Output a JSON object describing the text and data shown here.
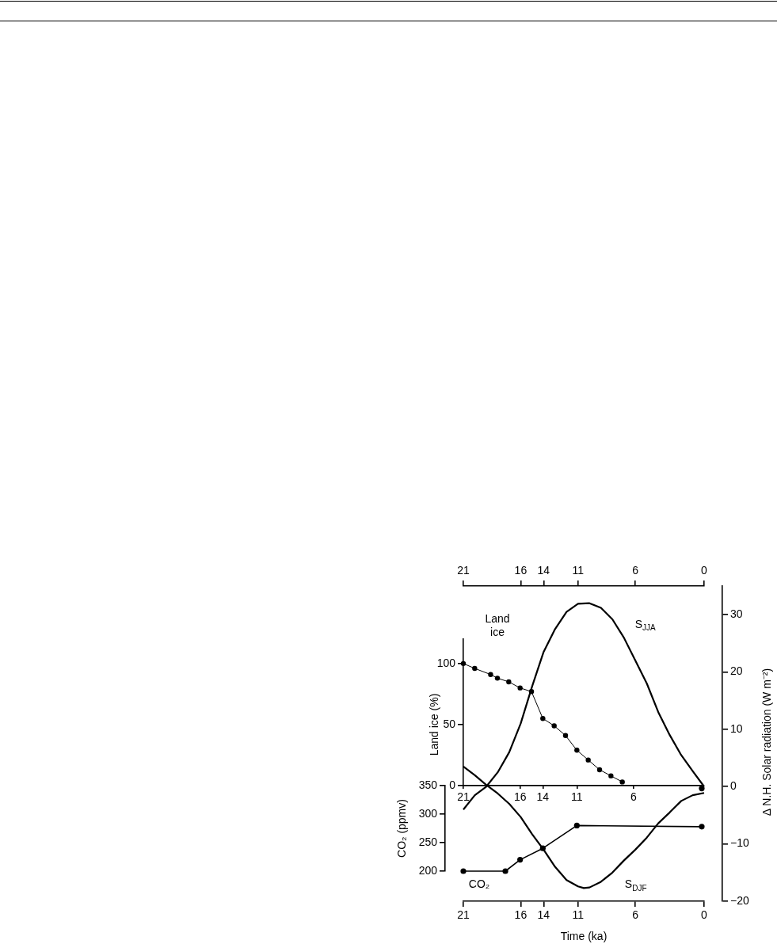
{
  "chart_data": [
    {
      "type": "line",
      "xlabel": "Time (ka)",
      "ylabel": "Δ N.H. Solar radiation (W m⁻²)",
      "xlim": [
        21,
        0
      ],
      "xticks": [
        21,
        16,
        14,
        11,
        6,
        0
      ],
      "x2lim": [
        21,
        0
      ],
      "x2ticks": [
        21,
        16,
        14,
        11,
        6,
        0
      ],
      "ylim": [
        -20,
        35
      ],
      "yticks": [
        -20,
        -10,
        0,
        10,
        20,
        30
      ],
      "series": [
        {
          "name": "S$_{JJA}$",
          "color": "#000000",
          "x": [
            21,
            20,
            19,
            18,
            17,
            16,
            15,
            14,
            13,
            12,
            11,
            10,
            9,
            8,
            7,
            6,
            5,
            4,
            3,
            2,
            1,
            0
          ],
          "values": [
            -4,
            -1.5,
            0,
            2.5,
            6,
            11,
            17.5,
            23.5,
            27.5,
            30.5,
            31.9,
            32,
            31.2,
            29.2,
            26,
            22,
            18,
            13,
            9,
            5.5,
            2.7,
            0
          ]
        },
        {
          "name": "S$_{DJF}$",
          "color": "#000000",
          "x": [
            21,
            20,
            19,
            18,
            17,
            16,
            15,
            14,
            13,
            12,
            11,
            10.5,
            10,
            9,
            8,
            7,
            6,
            5,
            4,
            3,
            2,
            1,
            0
          ],
          "values": [
            3.5,
            2,
            0.3,
            -1.2,
            -3,
            -5.3,
            -8.3,
            -11,
            -14,
            -16.3,
            -17.4,
            -17.7,
            -17.6,
            -16.6,
            -15,
            -12.9,
            -11,
            -8.9,
            -6.4,
            -4.5,
            -2.5,
            -1.5,
            -1.1
          ]
        }
      ]
    },
    {
      "type": "line",
      "ylabel": "Land ice (%)",
      "xlim": [
        21,
        0
      ],
      "xticks": [
        21,
        16,
        14,
        11,
        6
      ],
      "ylim": [
        0,
        120
      ],
      "yticks": [
        0,
        50,
        100
      ],
      "series": [
        {
          "name": "Land ice",
          "color": "#000000",
          "marker": "circle",
          "x": [
            21,
            20,
            18.6,
            18,
            17,
            16,
            15,
            14,
            13,
            12,
            11,
            10,
            9,
            8,
            7
          ],
          "values": [
            100,
            96,
            91,
            88,
            85,
            80,
            77,
            55,
            49,
            41,
            29,
            21,
            13,
            8,
            3
          ]
        }
      ]
    },
    {
      "type": "line",
      "ylabel": "CO₂ (ppmv)",
      "xlim": [
        21,
        0
      ],
      "ylim": [
        200,
        350
      ],
      "yticks": [
        200,
        250,
        300,
        350
      ],
      "tick_labels": "y",
      "series": [
        {
          "name": "CO₂",
          "color": "#000000",
          "marker": "circle",
          "x": [
            21,
            17.3,
            16,
            14,
            11,
            0
          ],
          "values": [
            200,
            200,
            220,
            240,
            280,
            278
          ]
        },
        {
          "type": "scatter",
          "color": "#000000",
          "x": [
            0
          ],
          "values": [
            345
          ]
        }
      ]
    }
  ]
}
